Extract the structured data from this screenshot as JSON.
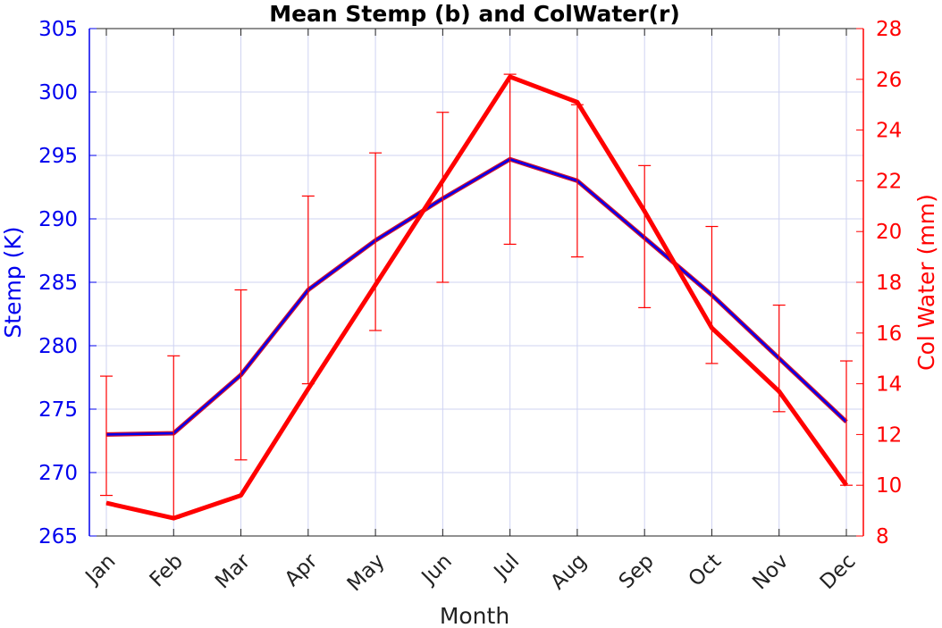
{
  "chart_data": {
    "type": "line",
    "title": "Mean Stemp (b) and ColWater(r)",
    "xlabel": "Month",
    "ylabel_left": "Stemp (K)",
    "ylabel_right": "Col Water (mm)",
    "categories": [
      "Jan",
      "Feb",
      "Mar",
      "Apr",
      "May",
      "Jun",
      "Jul",
      "Aug",
      "Sep",
      "Oct",
      "Nov",
      "Dec"
    ],
    "ylim_left": [
      265,
      305
    ],
    "ylim_right": [
      8,
      28
    ],
    "yticks_left": [
      "265",
      "270",
      "275",
      "280",
      "285",
      "290",
      "295",
      "300",
      "305"
    ],
    "yticks_right": [
      "8",
      "10",
      "12",
      "14",
      "16",
      "18",
      "20",
      "22",
      "24",
      "26",
      "28"
    ],
    "grid": true,
    "series": [
      {
        "axis": "left",
        "color": "#0000ee",
        "values": [
          273.0,
          273.1,
          277.7,
          284.4,
          288.3,
          291.6,
          294.7,
          293.0,
          288.5,
          284.0,
          279.0,
          274.0
        ]
      },
      {
        "axis": "right",
        "color": "#ff0000",
        "values": [
          9.3,
          8.7,
          9.6,
          13.8,
          17.9,
          22.0,
          26.1,
          25.1,
          20.8,
          16.2,
          13.7,
          10.0
        ],
        "error_low": [
          9.6,
          8.7,
          11.0,
          14.0,
          16.1,
          18.0,
          19.5,
          19.0,
          17.0,
          14.8,
          12.9,
          10.0
        ],
        "error_high": [
          14.3,
          15.1,
          17.7,
          21.4,
          23.1,
          24.7,
          26.2,
          25.0,
          22.6,
          20.2,
          17.1,
          14.9
        ]
      }
    ]
  },
  "colors": {
    "left_axis": "#0000ee",
    "right_axis": "#ff0000",
    "grid": "#cfd3f2"
  }
}
